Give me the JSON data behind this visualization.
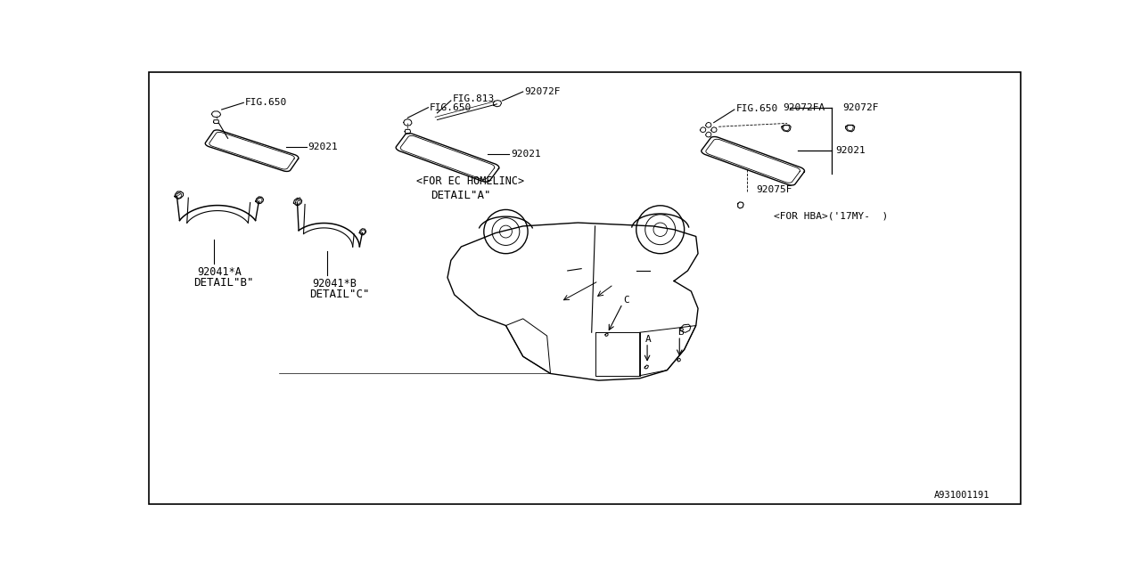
{
  "bg_color": "#ffffff",
  "line_color": "#000000",
  "text_color": "#000000",
  "diagram_id": "A931001191",
  "labels": {
    "fig650_1": "FIG.650",
    "fig650_2": "FIG.650",
    "fig650_3": "FIG.650",
    "fig813": "FIG.813",
    "part92021_1": "92021",
    "part92021_2": "92021",
    "part92021_3": "92021",
    "part92072F_1": "92072F",
    "part92072F_2": "92072F",
    "part92072FA": "92072FA",
    "part92075F": "92075F",
    "part92041A": "92041*A",
    "part92041B": "92041*B",
    "detail_a": "DETAIL\"A\"",
    "detail_b": "DETAIL\"B\"",
    "detail_c": "DETAIL\"C\"",
    "for_ec": "<FOR EC HOMELINC>",
    "for_hba": "<FOR HBA>('17MY-  )",
    "label_A": "A",
    "label_B": "B",
    "label_C": "C"
  }
}
